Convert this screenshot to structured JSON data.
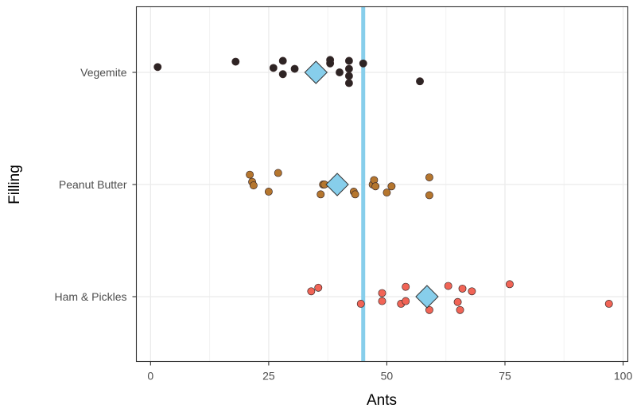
{
  "chart_data": {
    "type": "scatter",
    "xlabel": "Ants",
    "ylabel": "Filling",
    "xlim": [
      -3,
      101
    ],
    "xticks": [
      0,
      25,
      50,
      75,
      100
    ],
    "categories": [
      "Ham & Pickles",
      "Peanut Butter",
      "Vegemite"
    ],
    "grid": true,
    "reference_line": {
      "x": 45,
      "color": "#87CEEB"
    },
    "series": [
      {
        "category": "Vegemite",
        "color": "#2E2424",
        "points": [
          [
            1.5,
            0.06
          ],
          [
            18,
            0.12
          ],
          [
            26,
            0.05
          ],
          [
            28,
            0.13
          ],
          [
            28,
            -0.02
          ],
          [
            30.5,
            0.04
          ],
          [
            38,
            0.14
          ],
          [
            38,
            0.1
          ],
          [
            40,
            0.0
          ],
          [
            42,
            0.13
          ],
          [
            42,
            0.04
          ],
          [
            42,
            -0.04
          ],
          [
            42,
            -0.12
          ],
          [
            45,
            0.1
          ],
          [
            57,
            -0.1
          ]
        ],
        "mean": 35
      },
      {
        "category": "Peanut Butter",
        "color": "#B5762E",
        "points": [
          [
            21,
            0.11
          ],
          [
            21.5,
            0.03
          ],
          [
            21.8,
            -0.01
          ],
          [
            25,
            -0.08
          ],
          [
            27,
            0.13
          ],
          [
            36,
            -0.11
          ],
          [
            36.5,
            0.0
          ],
          [
            36.8,
            0.0
          ],
          [
            43,
            -0.08
          ],
          [
            43.3,
            -0.11
          ],
          [
            47,
            0.0
          ],
          [
            47.3,
            0.05
          ],
          [
            47.6,
            -0.02
          ],
          [
            50,
            -0.09
          ],
          [
            51,
            -0.02
          ],
          [
            59,
            0.08
          ],
          [
            59,
            -0.12
          ]
        ],
        "mean": 39.5
      },
      {
        "category": "Ham & Pickles",
        "color": "#F16456",
        "points": [
          [
            34,
            0.06
          ],
          [
            35.5,
            0.1
          ],
          [
            44.5,
            -0.08
          ],
          [
            49,
            0.04
          ],
          [
            49,
            -0.05
          ],
          [
            53,
            -0.08
          ],
          [
            54,
            0.11
          ],
          [
            54,
            -0.05
          ],
          [
            59,
            -0.15
          ],
          [
            63,
            0.12
          ],
          [
            65,
            -0.06
          ],
          [
            65.5,
            -0.15
          ],
          [
            66,
            0.09
          ],
          [
            68,
            0.06
          ],
          [
            76,
            0.14
          ],
          [
            97,
            -0.08
          ]
        ],
        "mean": 58.5
      }
    ],
    "mean_marker": {
      "shape": "diamond",
      "color": "#87CEEB"
    }
  }
}
